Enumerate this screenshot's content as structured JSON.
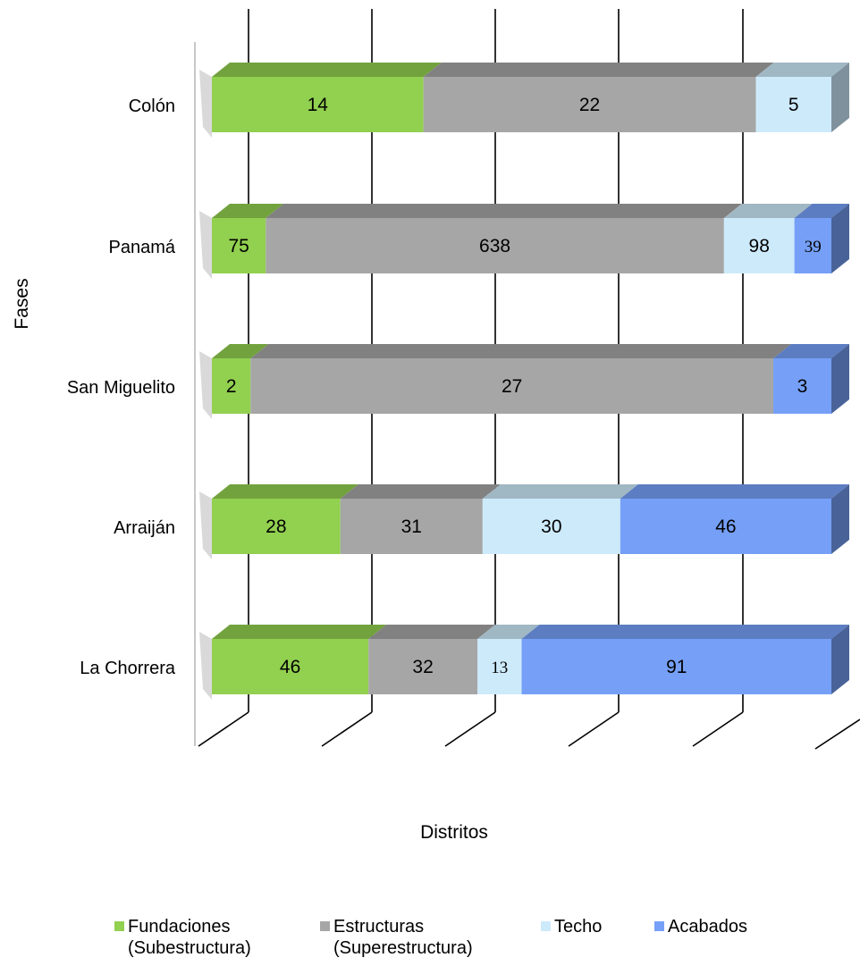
{
  "chart_data": {
    "type": "bar",
    "orientation": "horizontal",
    "stacked": true,
    "style": "3d",
    "categories": [
      "Colón",
      "Panamá",
      "San Miguelito",
      "Arraiján",
      "La Chorrera"
    ],
    "series": [
      {
        "name": "Fundaciones\n(Subestructura)",
        "color": "#92d050",
        "values": [
          14,
          75,
          2,
          28,
          46
        ]
      },
      {
        "name": "Estructuras\n(Superestructura)",
        "color": "#a6a6a6",
        "values": [
          22,
          638,
          27,
          31,
          32
        ]
      },
      {
        "name": "Techo",
        "color": "#cdeafb",
        "values": [
          5,
          98,
          null,
          30,
          13
        ]
      },
      {
        "name": "Acabados",
        "color": "#76a0f7",
        "values": [
          null,
          39,
          3,
          46,
          91
        ]
      }
    ],
    "xlabel": "Distritos",
    "ylabel": "Fases",
    "grid": true,
    "legend_position": "bottom"
  }
}
